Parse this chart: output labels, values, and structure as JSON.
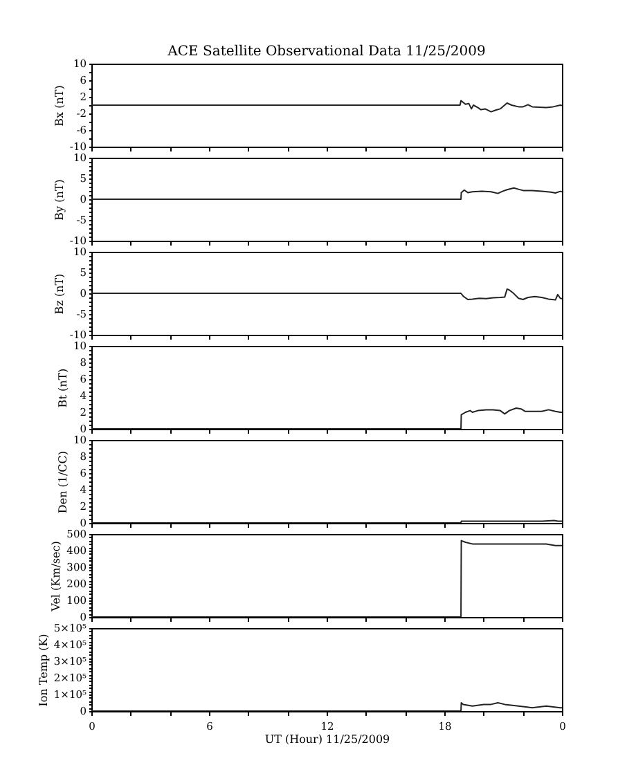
{
  "chart_data": [
    {
      "type": "line",
      "title": "ACE Satellite Observational Data  11/25/2009",
      "ylabel": "Bx (nT)",
      "color": "#222222",
      "tick_labels": "y",
      "grid": false,
      "x": [
        "2009-11-25T00:00",
        "2009-11-25T18:48",
        "2009-11-25T18:51",
        "2009-11-25T19:05",
        "2009-11-25T19:15",
        "2009-11-25T19:23",
        "2009-11-25T19:29",
        "2009-11-25T19:43",
        "2009-11-25T19:52",
        "2009-11-25T20:05",
        "2009-11-25T20:23",
        "2009-11-25T20:37",
        "2009-11-25T20:51",
        "2009-11-25T21:12",
        "2009-11-25T21:26",
        "2009-11-25T21:47",
        "2009-11-25T22:01",
        "2009-11-25T22:16",
        "2009-11-25T22:29",
        "2009-11-25T22:51",
        "2009-11-25T23:12",
        "2009-11-25T23:33",
        "2009-11-25T23:55",
        "2009-11-26T00:00"
      ],
      "values": [
        0,
        0,
        1.1,
        0.2,
        0.4,
        -0.9,
        0,
        -0.6,
        -1.1,
        -0.9,
        -1.6,
        -1.2,
        -0.9,
        0.5,
        0,
        -0.4,
        -0.4,
        0.1,
        -0.4,
        -0.5,
        -0.6,
        -0.4,
        0,
        -0.1
      ],
      "xlim": [
        "2009-11-25T00:00",
        "2009-11-26T00:00"
      ],
      "xticks": [
        {
          "value": "2009-11-25T00:00",
          "label": null
        },
        {
          "value": "2009-11-25T02:00",
          "label": null
        },
        {
          "value": "2009-11-25T04:00",
          "label": null
        },
        {
          "value": "2009-11-25T06:00",
          "label": null
        },
        {
          "value": "2009-11-25T08:00",
          "label": null
        },
        {
          "value": "2009-11-25T10:00",
          "label": null
        },
        {
          "value": "2009-11-25T12:00",
          "label": null
        },
        {
          "value": "2009-11-25T14:00",
          "label": null
        },
        {
          "value": "2009-11-25T16:00",
          "label": null
        },
        {
          "value": "2009-11-25T18:00",
          "label": null
        },
        {
          "value": "2009-11-25T20:00",
          "label": null
        },
        {
          "value": "2009-11-25T22:00",
          "label": null
        },
        {
          "value": "2009-11-26T00:00",
          "label": null
        }
      ],
      "ylim": [
        -10,
        10
      ],
      "yticks": [
        -10,
        {
          "value": -8,
          "label": null
        },
        -6,
        {
          "value": -4,
          "label": null
        },
        -2,
        {
          "value": 0,
          "label": null
        },
        2,
        {
          "value": 4,
          "label": null
        },
        6,
        {
          "value": 8,
          "label": null
        },
        10
      ]
    },
    {
      "type": "line",
      "ylabel": "By (nT)",
      "color": "#222222",
      "tick_labels": "y",
      "grid": false,
      "x": [
        "2009-11-25T00:00",
        "2009-11-25T18:51",
        "2009-11-25T18:52",
        "2009-11-25T19:01",
        "2009-11-25T19:12",
        "2009-11-25T19:26",
        "2009-11-25T19:55",
        "2009-11-25T20:23",
        "2009-11-25T20:44",
        "2009-11-25T20:58",
        "2009-11-25T21:12",
        "2009-11-25T21:33",
        "2009-11-25T21:47",
        "2009-11-25T22:01",
        "2009-11-25T22:29",
        "2009-11-25T22:58",
        "2009-11-25T23:26",
        "2009-11-25T23:40",
        "2009-11-25T23:55",
        "2009-11-26T00:00"
      ],
      "values": [
        0,
        0,
        1.6,
        2.2,
        1.6,
        1.8,
        1.9,
        1.8,
        1.4,
        1.9,
        2.3,
        2.7,
        2.4,
        2.1,
        2.1,
        1.9,
        1.7,
        1.5,
        1.9,
        1.8
      ],
      "xlim": [
        "2009-11-25T00:00",
        "2009-11-26T00:00"
      ],
      "xticks": [
        {
          "value": "2009-11-25T00:00",
          "label": null
        },
        {
          "value": "2009-11-25T02:00",
          "label": null
        },
        {
          "value": "2009-11-25T04:00",
          "label": null
        },
        {
          "value": "2009-11-25T06:00",
          "label": null
        },
        {
          "value": "2009-11-25T08:00",
          "label": null
        },
        {
          "value": "2009-11-25T10:00",
          "label": null
        },
        {
          "value": "2009-11-25T12:00",
          "label": null
        },
        {
          "value": "2009-11-25T14:00",
          "label": null
        },
        {
          "value": "2009-11-25T16:00",
          "label": null
        },
        {
          "value": "2009-11-25T18:00",
          "label": null
        },
        {
          "value": "2009-11-25T20:00",
          "label": null
        },
        {
          "value": "2009-11-25T22:00",
          "label": null
        },
        {
          "value": "2009-11-26T00:00",
          "label": null
        }
      ],
      "ylim": [
        -10,
        10
      ],
      "yticks": [
        -10,
        {
          "value": -9,
          "label": null
        },
        {
          "value": -8,
          "label": null
        },
        {
          "value": -7,
          "label": null
        },
        {
          "value": -6,
          "label": null
        },
        -5,
        {
          "value": -4,
          "label": null
        },
        {
          "value": -3,
          "label": null
        },
        {
          "value": -2,
          "label": null
        },
        {
          "value": -1,
          "label": null
        },
        0,
        {
          "value": 1,
          "label": null
        },
        {
          "value": 2,
          "label": null
        },
        {
          "value": 3,
          "label": null
        },
        {
          "value": 4,
          "label": null
        },
        5,
        {
          "value": 6,
          "label": null
        },
        {
          "value": 7,
          "label": null
        },
        {
          "value": 8,
          "label": null
        },
        {
          "value": 9,
          "label": null
        },
        10
      ]
    },
    {
      "type": "line",
      "ylabel": "Bz (nT)",
      "color": "#222222",
      "tick_labels": "y",
      "grid": false,
      "x": [
        "2009-11-25T00:00",
        "2009-11-25T18:51",
        "2009-11-25T18:58",
        "2009-11-25T19:12",
        "2009-11-25T19:26",
        "2009-11-25T19:47",
        "2009-11-25T20:08",
        "2009-11-25T20:29",
        "2009-11-25T20:51",
        "2009-11-25T21:05",
        "2009-11-25T21:12",
        "2009-11-25T21:19",
        "2009-11-25T21:33",
        "2009-11-25T21:47",
        "2009-11-25T22:01",
        "2009-11-25T22:16",
        "2009-11-25T22:37",
        "2009-11-25T22:58",
        "2009-11-25T23:19",
        "2009-11-25T23:40",
        "2009-11-25T23:47",
        "2009-11-25T23:55",
        "2009-11-26T00:00"
      ],
      "values": [
        0,
        0,
        -0.7,
        -1.5,
        -1.4,
        -1.2,
        -1.3,
        -1.1,
        -1.0,
        -0.9,
        1.0,
        0.8,
        -0.1,
        -1.2,
        -1.5,
        -1.0,
        -0.8,
        -1.0,
        -1.4,
        -1.6,
        -0.3,
        -1.2,
        -1.3
      ],
      "xlim": [
        "2009-11-25T00:00",
        "2009-11-26T00:00"
      ],
      "xticks": [
        {
          "value": "2009-11-25T00:00",
          "label": null
        },
        {
          "value": "2009-11-25T02:00",
          "label": null
        },
        {
          "value": "2009-11-25T04:00",
          "label": null
        },
        {
          "value": "2009-11-25T06:00",
          "label": null
        },
        {
          "value": "2009-11-25T08:00",
          "label": null
        },
        {
          "value": "2009-11-25T10:00",
          "label": null
        },
        {
          "value": "2009-11-25T12:00",
          "label": null
        },
        {
          "value": "2009-11-25T14:00",
          "label": null
        },
        {
          "value": "2009-11-25T16:00",
          "label": null
        },
        {
          "value": "2009-11-25T18:00",
          "label": null
        },
        {
          "value": "2009-11-25T20:00",
          "label": null
        },
        {
          "value": "2009-11-25T22:00",
          "label": null
        },
        {
          "value": "2009-11-26T00:00",
          "label": null
        }
      ],
      "ylim": [
        -10,
        10
      ],
      "yticks": [
        -10,
        {
          "value": -9,
          "label": null
        },
        {
          "value": -8,
          "label": null
        },
        {
          "value": -7,
          "label": null
        },
        {
          "value": -6,
          "label": null
        },
        -5,
        {
          "value": -4,
          "label": null
        },
        {
          "value": -3,
          "label": null
        },
        {
          "value": -2,
          "label": null
        },
        {
          "value": -1,
          "label": null
        },
        0,
        {
          "value": 1,
          "label": null
        },
        {
          "value": 2,
          "label": null
        },
        {
          "value": 3,
          "label": null
        },
        {
          "value": 4,
          "label": null
        },
        5,
        {
          "value": 6,
          "label": null
        },
        {
          "value": 7,
          "label": null
        },
        {
          "value": 8,
          "label": null
        },
        {
          "value": 9,
          "label": null
        },
        10
      ]
    },
    {
      "type": "line",
      "ylabel": "Bt (nT)",
      "color": "#222222",
      "tick_labels": "y",
      "grid": false,
      "x": [
        "2009-11-25T00:00",
        "2009-11-25T18:51",
        "2009-11-25T18:52",
        "2009-11-25T19:05",
        "2009-11-25T19:19",
        "2009-11-25T19:26",
        "2009-11-25T19:43",
        "2009-11-25T20:08",
        "2009-11-25T20:29",
        "2009-11-25T20:51",
        "2009-11-25T21:05",
        "2009-11-25T21:19",
        "2009-11-25T21:40",
        "2009-11-25T21:55",
        "2009-11-25T22:08",
        "2009-11-25T22:29",
        "2009-11-25T22:58",
        "2009-11-25T23:19",
        "2009-11-25T23:40",
        "2009-11-25T23:55",
        "2009-11-26T00:00"
      ],
      "values": [
        0,
        0,
        1.7,
        2.0,
        2.2,
        2.0,
        2.2,
        2.3,
        2.3,
        2.2,
        1.8,
        2.2,
        2.5,
        2.4,
        2.1,
        2.1,
        2.1,
        2.3,
        2.1,
        2.0,
        2.0
      ],
      "xlim": [
        "2009-11-25T00:00",
        "2009-11-26T00:00"
      ],
      "xticks": [
        {
          "value": "2009-11-25T00:00",
          "label": null
        },
        {
          "value": "2009-11-25T02:00",
          "label": null
        },
        {
          "value": "2009-11-25T04:00",
          "label": null
        },
        {
          "value": "2009-11-25T06:00",
          "label": null
        },
        {
          "value": "2009-11-25T08:00",
          "label": null
        },
        {
          "value": "2009-11-25T10:00",
          "label": null
        },
        {
          "value": "2009-11-25T12:00",
          "label": null
        },
        {
          "value": "2009-11-25T14:00",
          "label": null
        },
        {
          "value": "2009-11-25T16:00",
          "label": null
        },
        {
          "value": "2009-11-25T18:00",
          "label": null
        },
        {
          "value": "2009-11-25T20:00",
          "label": null
        },
        {
          "value": "2009-11-25T22:00",
          "label": null
        },
        {
          "value": "2009-11-26T00:00",
          "label": null
        }
      ],
      "ylim": [
        0,
        10
      ],
      "yticks": [
        0,
        {
          "value": 0.5,
          "label": null
        },
        {
          "value": 1,
          "label": null
        },
        {
          "value": 1.5,
          "label": null
        },
        2,
        {
          "value": 2.5,
          "label": null
        },
        {
          "value": 3,
          "label": null
        },
        {
          "value": 3.5,
          "label": null
        },
        4,
        {
          "value": 4.5,
          "label": null
        },
        {
          "value": 5,
          "label": null
        },
        {
          "value": 5.5,
          "label": null
        },
        6,
        {
          "value": 6.5,
          "label": null
        },
        {
          "value": 7,
          "label": null
        },
        {
          "value": 7.5,
          "label": null
        },
        8,
        {
          "value": 8.5,
          "label": null
        },
        {
          "value": 9,
          "label": null
        },
        {
          "value": 9.5,
          "label": null
        },
        10
      ]
    },
    {
      "type": "line",
      "ylabel": "Den (1/CC)",
      "color": "#222222",
      "tick_labels": "y",
      "grid": false,
      "x": [
        "2009-11-25T00:00",
        "2009-11-25T18:51",
        "2009-11-25T18:52",
        "2009-11-25T20:00",
        "2009-11-25T21:00",
        "2009-11-25T22:00",
        "2009-11-25T23:00",
        "2009-11-25T23:36",
        "2009-11-25T23:48",
        "2009-11-26T00:00"
      ],
      "values": [
        0,
        0,
        0.2,
        0.2,
        0.2,
        0.2,
        0.2,
        0.3,
        0.2,
        0.2
      ],
      "xlim": [
        "2009-11-25T00:00",
        "2009-11-26T00:00"
      ],
      "xticks": [
        {
          "value": "2009-11-25T00:00",
          "label": null
        },
        {
          "value": "2009-11-25T02:00",
          "label": null
        },
        {
          "value": "2009-11-25T04:00",
          "label": null
        },
        {
          "value": "2009-11-25T06:00",
          "label": null
        },
        {
          "value": "2009-11-25T08:00",
          "label": null
        },
        {
          "value": "2009-11-25T10:00",
          "label": null
        },
        {
          "value": "2009-11-25T12:00",
          "label": null
        },
        {
          "value": "2009-11-25T14:00",
          "label": null
        },
        {
          "value": "2009-11-25T16:00",
          "label": null
        },
        {
          "value": "2009-11-25T18:00",
          "label": null
        },
        {
          "value": "2009-11-25T20:00",
          "label": null
        },
        {
          "value": "2009-11-25T22:00",
          "label": null
        },
        {
          "value": "2009-11-26T00:00",
          "label": null
        }
      ],
      "ylim": [
        0,
        10
      ],
      "yticks": [
        0,
        {
          "value": 0.5,
          "label": null
        },
        {
          "value": 1,
          "label": null
        },
        {
          "value": 1.5,
          "label": null
        },
        2,
        {
          "value": 2.5,
          "label": null
        },
        {
          "value": 3,
          "label": null
        },
        {
          "value": 3.5,
          "label": null
        },
        4,
        {
          "value": 4.5,
          "label": null
        },
        {
          "value": 5,
          "label": null
        },
        {
          "value": 5.5,
          "label": null
        },
        6,
        {
          "value": 6.5,
          "label": null
        },
        {
          "value": 7,
          "label": null
        },
        {
          "value": 7.5,
          "label": null
        },
        8,
        {
          "value": 8.5,
          "label": null
        },
        {
          "value": 9,
          "label": null
        },
        {
          "value": 9.5,
          "label": null
        },
        10
      ]
    },
    {
      "type": "line",
      "ylabel": "Vel (Km/sec)",
      "color": "#222222",
      "tick_labels": "y",
      "grid": false,
      "x": [
        "2009-11-25T00:00",
        "2009-11-25T18:51",
        "2009-11-25T18:52",
        "2009-11-25T19:05",
        "2009-11-25T19:26",
        "2009-11-25T19:55",
        "2009-11-25T20:23",
        "2009-11-25T20:51",
        "2009-11-25T21:19",
        "2009-11-25T21:47",
        "2009-11-25T22:16",
        "2009-11-25T22:44",
        "2009-11-25T23:12",
        "2009-11-25T23:40",
        "2009-11-25T23:55",
        "2009-11-26T00:00"
      ],
      "values": [
        0,
        0,
        460,
        450,
        440,
        440,
        440,
        440,
        440,
        440,
        440,
        440,
        440,
        430,
        430,
        430
      ],
      "xlim": [
        "2009-11-25T00:00",
        "2009-11-26T00:00"
      ],
      "xticks": [
        {
          "value": "2009-11-25T00:00",
          "label": null
        },
        {
          "value": "2009-11-25T02:00",
          "label": null
        },
        {
          "value": "2009-11-25T04:00",
          "label": null
        },
        {
          "value": "2009-11-25T06:00",
          "label": null
        },
        {
          "value": "2009-11-25T08:00",
          "label": null
        },
        {
          "value": "2009-11-25T10:00",
          "label": null
        },
        {
          "value": "2009-11-25T12:00",
          "label": null
        },
        {
          "value": "2009-11-25T14:00",
          "label": null
        },
        {
          "value": "2009-11-25T16:00",
          "label": null
        },
        {
          "value": "2009-11-25T18:00",
          "label": null
        },
        {
          "value": "2009-11-25T20:00",
          "label": null
        },
        {
          "value": "2009-11-25T22:00",
          "label": null
        },
        {
          "value": "2009-11-26T00:00",
          "label": null
        }
      ],
      "ylim": [
        0,
        500
      ],
      "yticks": [
        0,
        {
          "value": 20,
          "label": null
        },
        {
          "value": 40,
          "label": null
        },
        {
          "value": 60,
          "label": null
        },
        {
          "value": 80,
          "label": null
        },
        100,
        {
          "value": 120,
          "label": null
        },
        {
          "value": 140,
          "label": null
        },
        {
          "value": 160,
          "label": null
        },
        {
          "value": 180,
          "label": null
        },
        200,
        {
          "value": 220,
          "label": null
        },
        {
          "value": 240,
          "label": null
        },
        {
          "value": 260,
          "label": null
        },
        {
          "value": 280,
          "label": null
        },
        300,
        {
          "value": 320,
          "label": null
        },
        {
          "value": 340,
          "label": null
        },
        {
          "value": 360,
          "label": null
        },
        {
          "value": 380,
          "label": null
        },
        400,
        {
          "value": 420,
          "label": null
        },
        {
          "value": 440,
          "label": null
        },
        {
          "value": 460,
          "label": null
        },
        {
          "value": 480,
          "label": null
        },
        500
      ]
    },
    {
      "type": "line",
      "ylabel": "Ion Temp (K)",
      "xlabel": "UT (Hour)  11/25/2009",
      "color": "#222222",
      "grid": false,
      "x": [
        "2009-11-25T00:00",
        "2009-11-25T18:51",
        "2009-11-25T18:52",
        "2009-11-25T18:58",
        "2009-11-25T19:26",
        "2009-11-25T20:01",
        "2009-11-25T20:23",
        "2009-11-25T20:44",
        "2009-11-25T21:05",
        "2009-11-25T21:47",
        "2009-11-25T22:29",
        "2009-11-25T23:12",
        "2009-11-25T23:55",
        "2009-11-26T00:00"
      ],
      "values": [
        0,
        0,
        50000,
        40000,
        30000,
        40000,
        40000,
        50000,
        40000,
        30000,
        20000,
        30000,
        20000,
        20000
      ],
      "xlim": [
        "2009-11-25T00:00",
        "2009-11-26T00:00"
      ],
      "xticks": [
        {
          "value": "2009-11-25T00:00",
          "label": "0"
        },
        {
          "value": "2009-11-25T02:00",
          "label": null
        },
        {
          "value": "2009-11-25T04:00",
          "label": null
        },
        {
          "value": "2009-11-25T06:00",
          "label": "6"
        },
        {
          "value": "2009-11-25T08:00",
          "label": null
        },
        {
          "value": "2009-11-25T10:00",
          "label": null
        },
        {
          "value": "2009-11-25T12:00",
          "label": "12"
        },
        {
          "value": "2009-11-25T14:00",
          "label": null
        },
        {
          "value": "2009-11-25T16:00",
          "label": null
        },
        {
          "value": "2009-11-25T18:00",
          "label": "18"
        },
        {
          "value": "2009-11-25T20:00",
          "label": null
        },
        {
          "value": "2009-11-25T22:00",
          "label": null
        },
        {
          "value": "2009-11-26T00:00",
          "label": "0"
        }
      ],
      "ylim": [
        0,
        500000
      ],
      "yticks": [
        0,
        {
          "value": 20000,
          "label": null
        },
        {
          "value": 40000,
          "label": null
        },
        {
          "value": 60000,
          "label": null
        },
        {
          "value": 80000,
          "label": null
        },
        {
          "value": 100000,
          "label": "1×10⁵"
        },
        {
          "value": 120000,
          "label": null
        },
        {
          "value": 140000,
          "label": null
        },
        {
          "value": 160000,
          "label": null
        },
        {
          "value": 180000,
          "label": null
        },
        {
          "value": 200000,
          "label": "2×10⁵"
        },
        {
          "value": 220000,
          "label": null
        },
        {
          "value": 240000,
          "label": null
        },
        {
          "value": 260000,
          "label": null
        },
        {
          "value": 280000,
          "label": null
        },
        {
          "value": 300000,
          "label": "3×10⁵"
        },
        {
          "value": 320000,
          "label": null
        },
        {
          "value": 340000,
          "label": null
        },
        {
          "value": 360000,
          "label": null
        },
        {
          "value": 380000,
          "label": null
        },
        {
          "value": 400000,
          "label": "4×10⁵"
        },
        {
          "value": 420000,
          "label": null
        },
        {
          "value": 440000,
          "label": null
        },
        {
          "value": 460000,
          "label": null
        },
        {
          "value": 480000,
          "label": null
        },
        {
          "value": 500000,
          "label": "5×10⁵"
        }
      ]
    }
  ]
}
